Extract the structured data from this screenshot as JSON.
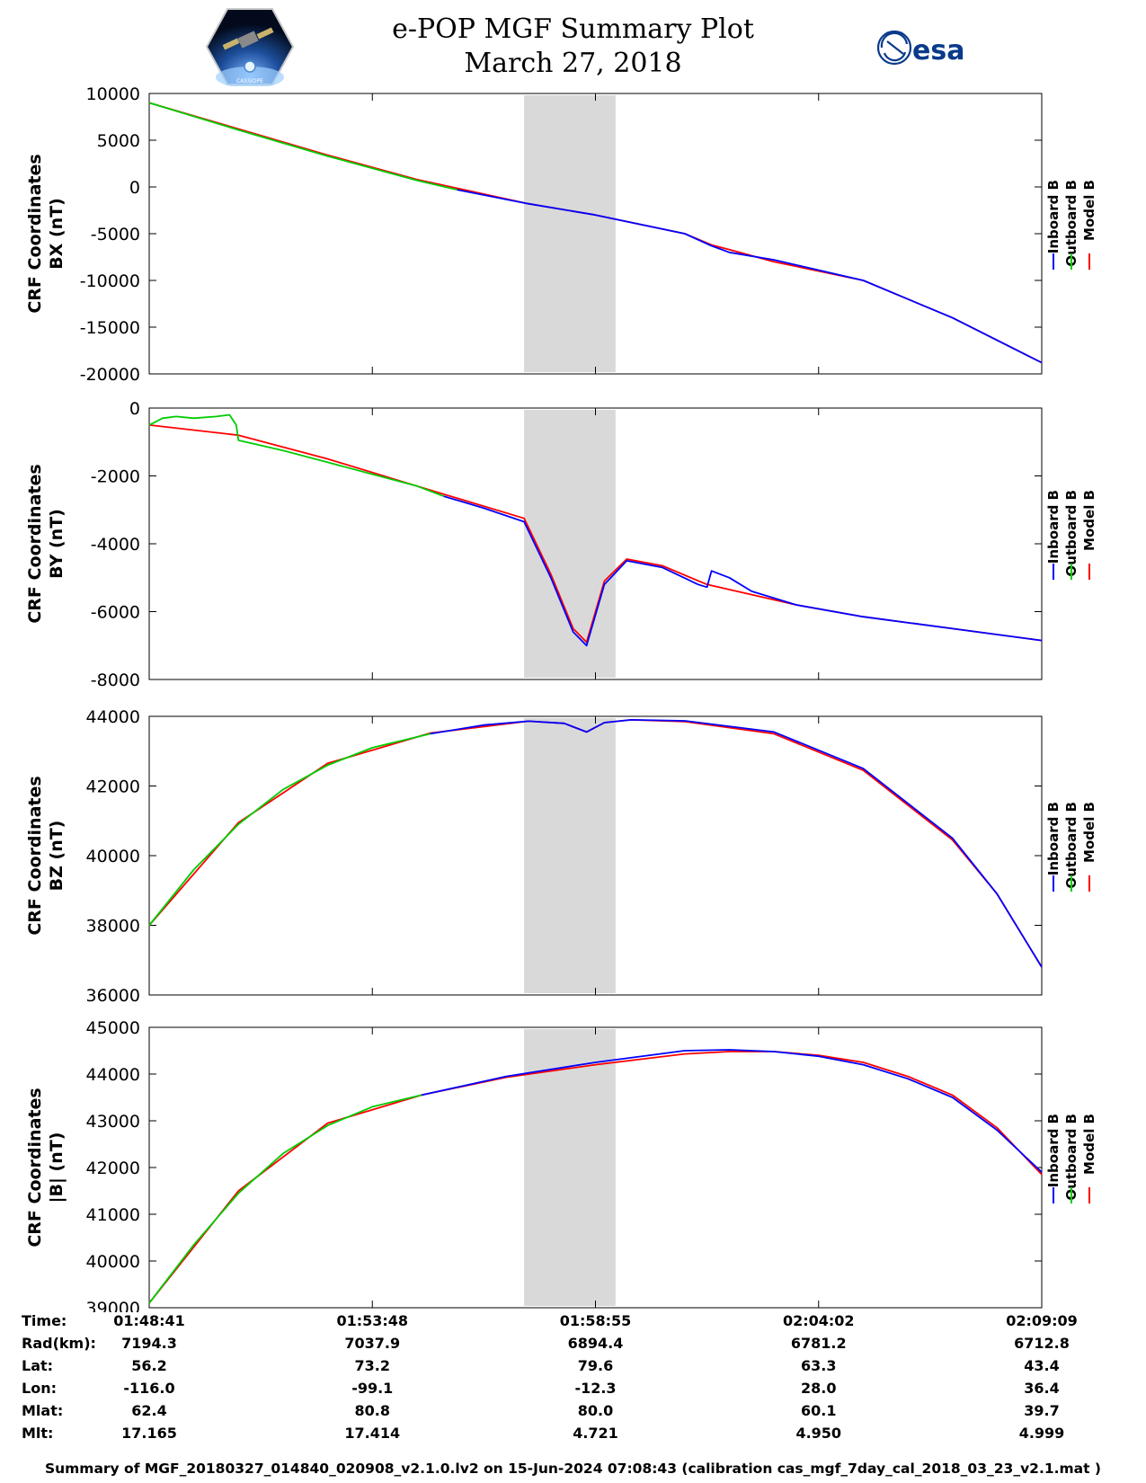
{
  "header": {
    "title": "e-POP MGF Summary Plot",
    "date": "March 27, 2018",
    "left_logo_text": "CASSIOPE",
    "right_logo_text": "esa"
  },
  "legend": {
    "labels": [
      "Inboard B",
      "Outboard B",
      "Model B"
    ],
    "colors": [
      "#0000ff",
      "#00cc00",
      "#ff0000"
    ]
  },
  "shaded_interval": {
    "start_minutes": 8.4,
    "end_minutes": 10.45,
    "color": "#d9d9d9"
  },
  "chart_data": [
    {
      "type": "line",
      "ylabel_line1": "CRF Coordinates",
      "ylabel_line2": "BX (nT)",
      "ylim": [
        -20000,
        10000
      ],
      "yticks": [
        10000,
        5000,
        0,
        -5000,
        -10000,
        -15000,
        -20000
      ],
      "ytick_labels": [
        "10000",
        "5000",
        "0",
        "-5000",
        "-10000",
        "-15000",
        "-20000"
      ],
      "series": [
        {
          "name": "Outboard B",
          "color": "#00cc00",
          "x": [
            0,
            2,
            4,
            6,
            6.9
          ],
          "y": [
            9000,
            6100,
            3300,
            700,
            -300
          ]
        },
        {
          "name": "Inboard B",
          "color": "#0000ff",
          "x": [
            6.9,
            8.5,
            10,
            12,
            12.6,
            13,
            14,
            16,
            18,
            20
          ],
          "y": [
            -300,
            -1800,
            -3000,
            -5000,
            -6300,
            -7000,
            -7800,
            -10000,
            -14000,
            -18800
          ]
        },
        {
          "name": "Model B",
          "color": "#ff0000",
          "x": [
            0,
            2,
            4,
            6,
            8.5,
            10,
            12,
            12.6,
            13,
            14,
            16,
            18,
            20
          ],
          "y": [
            9000,
            6200,
            3400,
            800,
            -1800,
            -3000,
            -5000,
            -6200,
            -6700,
            -8000,
            -10000,
            -14000,
            -18800
          ]
        }
      ]
    },
    {
      "type": "line",
      "ylabel_line1": "CRF Coordinates",
      "ylabel_line2": "BY (nT)",
      "ylim": [
        -8000,
        0
      ],
      "yticks": [
        0,
        -2000,
        -4000,
        -6000,
        -8000
      ],
      "ytick_labels": [
        "0",
        "-2000",
        "-4000",
        "-6000",
        "-8000"
      ],
      "series": [
        {
          "name": "Outboard B",
          "color": "#00cc00",
          "x": [
            0,
            0.3,
            0.6,
            1,
            1.5,
            1.8,
            1.95,
            2,
            3,
            4,
            5,
            6,
            6.6
          ],
          "y": [
            -500,
            -300,
            -250,
            -300,
            -250,
            -200,
            -500,
            -950,
            -1250,
            -1600,
            -1950,
            -2300,
            -2600
          ]
        },
        {
          "name": "Inboard B",
          "color": "#0000ff",
          "x": [
            6.6,
            7.5,
            8.4,
            9,
            9.5,
            9.8,
            10.2,
            10.7,
            11.5,
            12.3,
            12.5,
            12.6,
            13,
            13.5,
            14.5,
            16,
            18,
            20
          ],
          "y": [
            -2600,
            -2950,
            -3350,
            -5000,
            -6600,
            -7000,
            -5200,
            -4500,
            -4700,
            -5200,
            -5280,
            -4800,
            -5000,
            -5400,
            -5800,
            -6150,
            -6500,
            -6850
          ]
        },
        {
          "name": "Model B",
          "color": "#ff0000",
          "x": [
            0,
            2,
            4,
            6,
            8.4,
            9,
            9.5,
            9.8,
            10.2,
            10.7,
            11.5,
            12.5,
            14.5,
            16,
            18,
            20
          ],
          "y": [
            -500,
            -800,
            -1500,
            -2300,
            -3250,
            -4900,
            -6500,
            -6900,
            -5100,
            -4450,
            -4650,
            -5200,
            -5800,
            -6150,
            -6500,
            -6850
          ]
        }
      ]
    },
    {
      "type": "line",
      "ylabel_line1": "CRF Coordinates",
      "ylabel_line2": "BZ (nT)",
      "ylim": [
        36000,
        44000
      ],
      "yticks": [
        44000,
        42000,
        40000,
        38000,
        36000
      ],
      "ytick_labels": [
        "44000",
        "42000",
        "40000",
        "38000",
        "36000"
      ],
      "series": [
        {
          "name": "Outboard B",
          "color": "#00cc00",
          "x": [
            0,
            1,
            2,
            3,
            4,
            5,
            6.3
          ],
          "y": [
            38000,
            39600,
            40900,
            41900,
            42600,
            43100,
            43500
          ]
        },
        {
          "name": "Inboard B",
          "color": "#0000ff",
          "x": [
            6.3,
            7.5,
            8.5,
            9.3,
            9.8,
            10.2,
            10.8,
            12,
            14,
            16,
            18,
            19,
            20
          ],
          "y": [
            43500,
            43750,
            43860,
            43800,
            43550,
            43820,
            43900,
            43870,
            43550,
            42500,
            40500,
            38900,
            36800
          ]
        },
        {
          "name": "Model B",
          "color": "#ff0000",
          "x": [
            0,
            2,
            4,
            6.3,
            8.5,
            9.3,
            9.8,
            10.2,
            10.8,
            12,
            14,
            16,
            18,
            19,
            20
          ],
          "y": [
            38000,
            40950,
            42650,
            43520,
            43860,
            43800,
            43550,
            43820,
            43900,
            43850,
            43500,
            42450,
            40450,
            38900,
            36800
          ]
        }
      ]
    },
    {
      "type": "line",
      "ylabel_line1": "CRF Coordinates",
      "ylabel_line2": "|B| (nT)",
      "ylim": [
        39000,
        45000
      ],
      "yticks": [
        45000,
        44000,
        43000,
        42000,
        41000,
        40000,
        39000
      ],
      "ytick_labels": [
        "45000",
        "44000",
        "43000",
        "42000",
        "41000",
        "40000",
        "39000"
      ],
      "series": [
        {
          "name": "Outboard B",
          "color": "#00cc00",
          "x": [
            0,
            1,
            2,
            3,
            4,
            5,
            6.1
          ],
          "y": [
            39100,
            40350,
            41450,
            42300,
            42900,
            43300,
            43550
          ]
        },
        {
          "name": "Inboard B",
          "color": "#0000ff",
          "x": [
            6.1,
            8,
            10,
            12,
            13,
            14,
            15,
            16,
            17,
            18,
            19,
            20
          ],
          "y": [
            43550,
            43950,
            44250,
            44500,
            44520,
            44480,
            44380,
            44200,
            43900,
            43500,
            42800,
            41900
          ]
        },
        {
          "name": "Model B",
          "color": "#ff0000",
          "x": [
            0,
            2,
            4,
            6.1,
            8,
            10,
            12,
            13,
            14,
            15,
            16,
            17,
            18,
            19,
            20
          ],
          "y": [
            39100,
            41500,
            42950,
            43550,
            43930,
            44200,
            44430,
            44480,
            44480,
            44400,
            44250,
            43950,
            43550,
            42850,
            41850
          ]
        }
      ]
    }
  ],
  "ephemeris": {
    "labels": [
      "Time:",
      "Rad(km):",
      "Lat:",
      "Lon:",
      "Mlat:",
      "Mlt:"
    ],
    "columns": [
      [
        "01:48:41",
        "7194.3",
        "56.2",
        "-116.0",
        "62.4",
        "17.165"
      ],
      [
        "01:53:48",
        "7037.9",
        "73.2",
        "-99.1",
        "80.8",
        "17.414"
      ],
      [
        "01:58:55",
        "6894.4",
        "79.6",
        "-12.3",
        "80.0",
        "4.721"
      ],
      [
        "02:04:02",
        "6781.2",
        "63.3",
        "28.0",
        "60.1",
        "4.950"
      ],
      [
        "02:09:09",
        "6712.8",
        "43.4",
        "36.4",
        "39.7",
        "4.999"
      ]
    ]
  },
  "footer": "Summary of MGF_20180327_014840_020908_v2.1.0.lv2 on 15-Jun-2024 07:08:43 (calibration cas_mgf_7day_cal_2018_03_23_v2.1.mat )"
}
